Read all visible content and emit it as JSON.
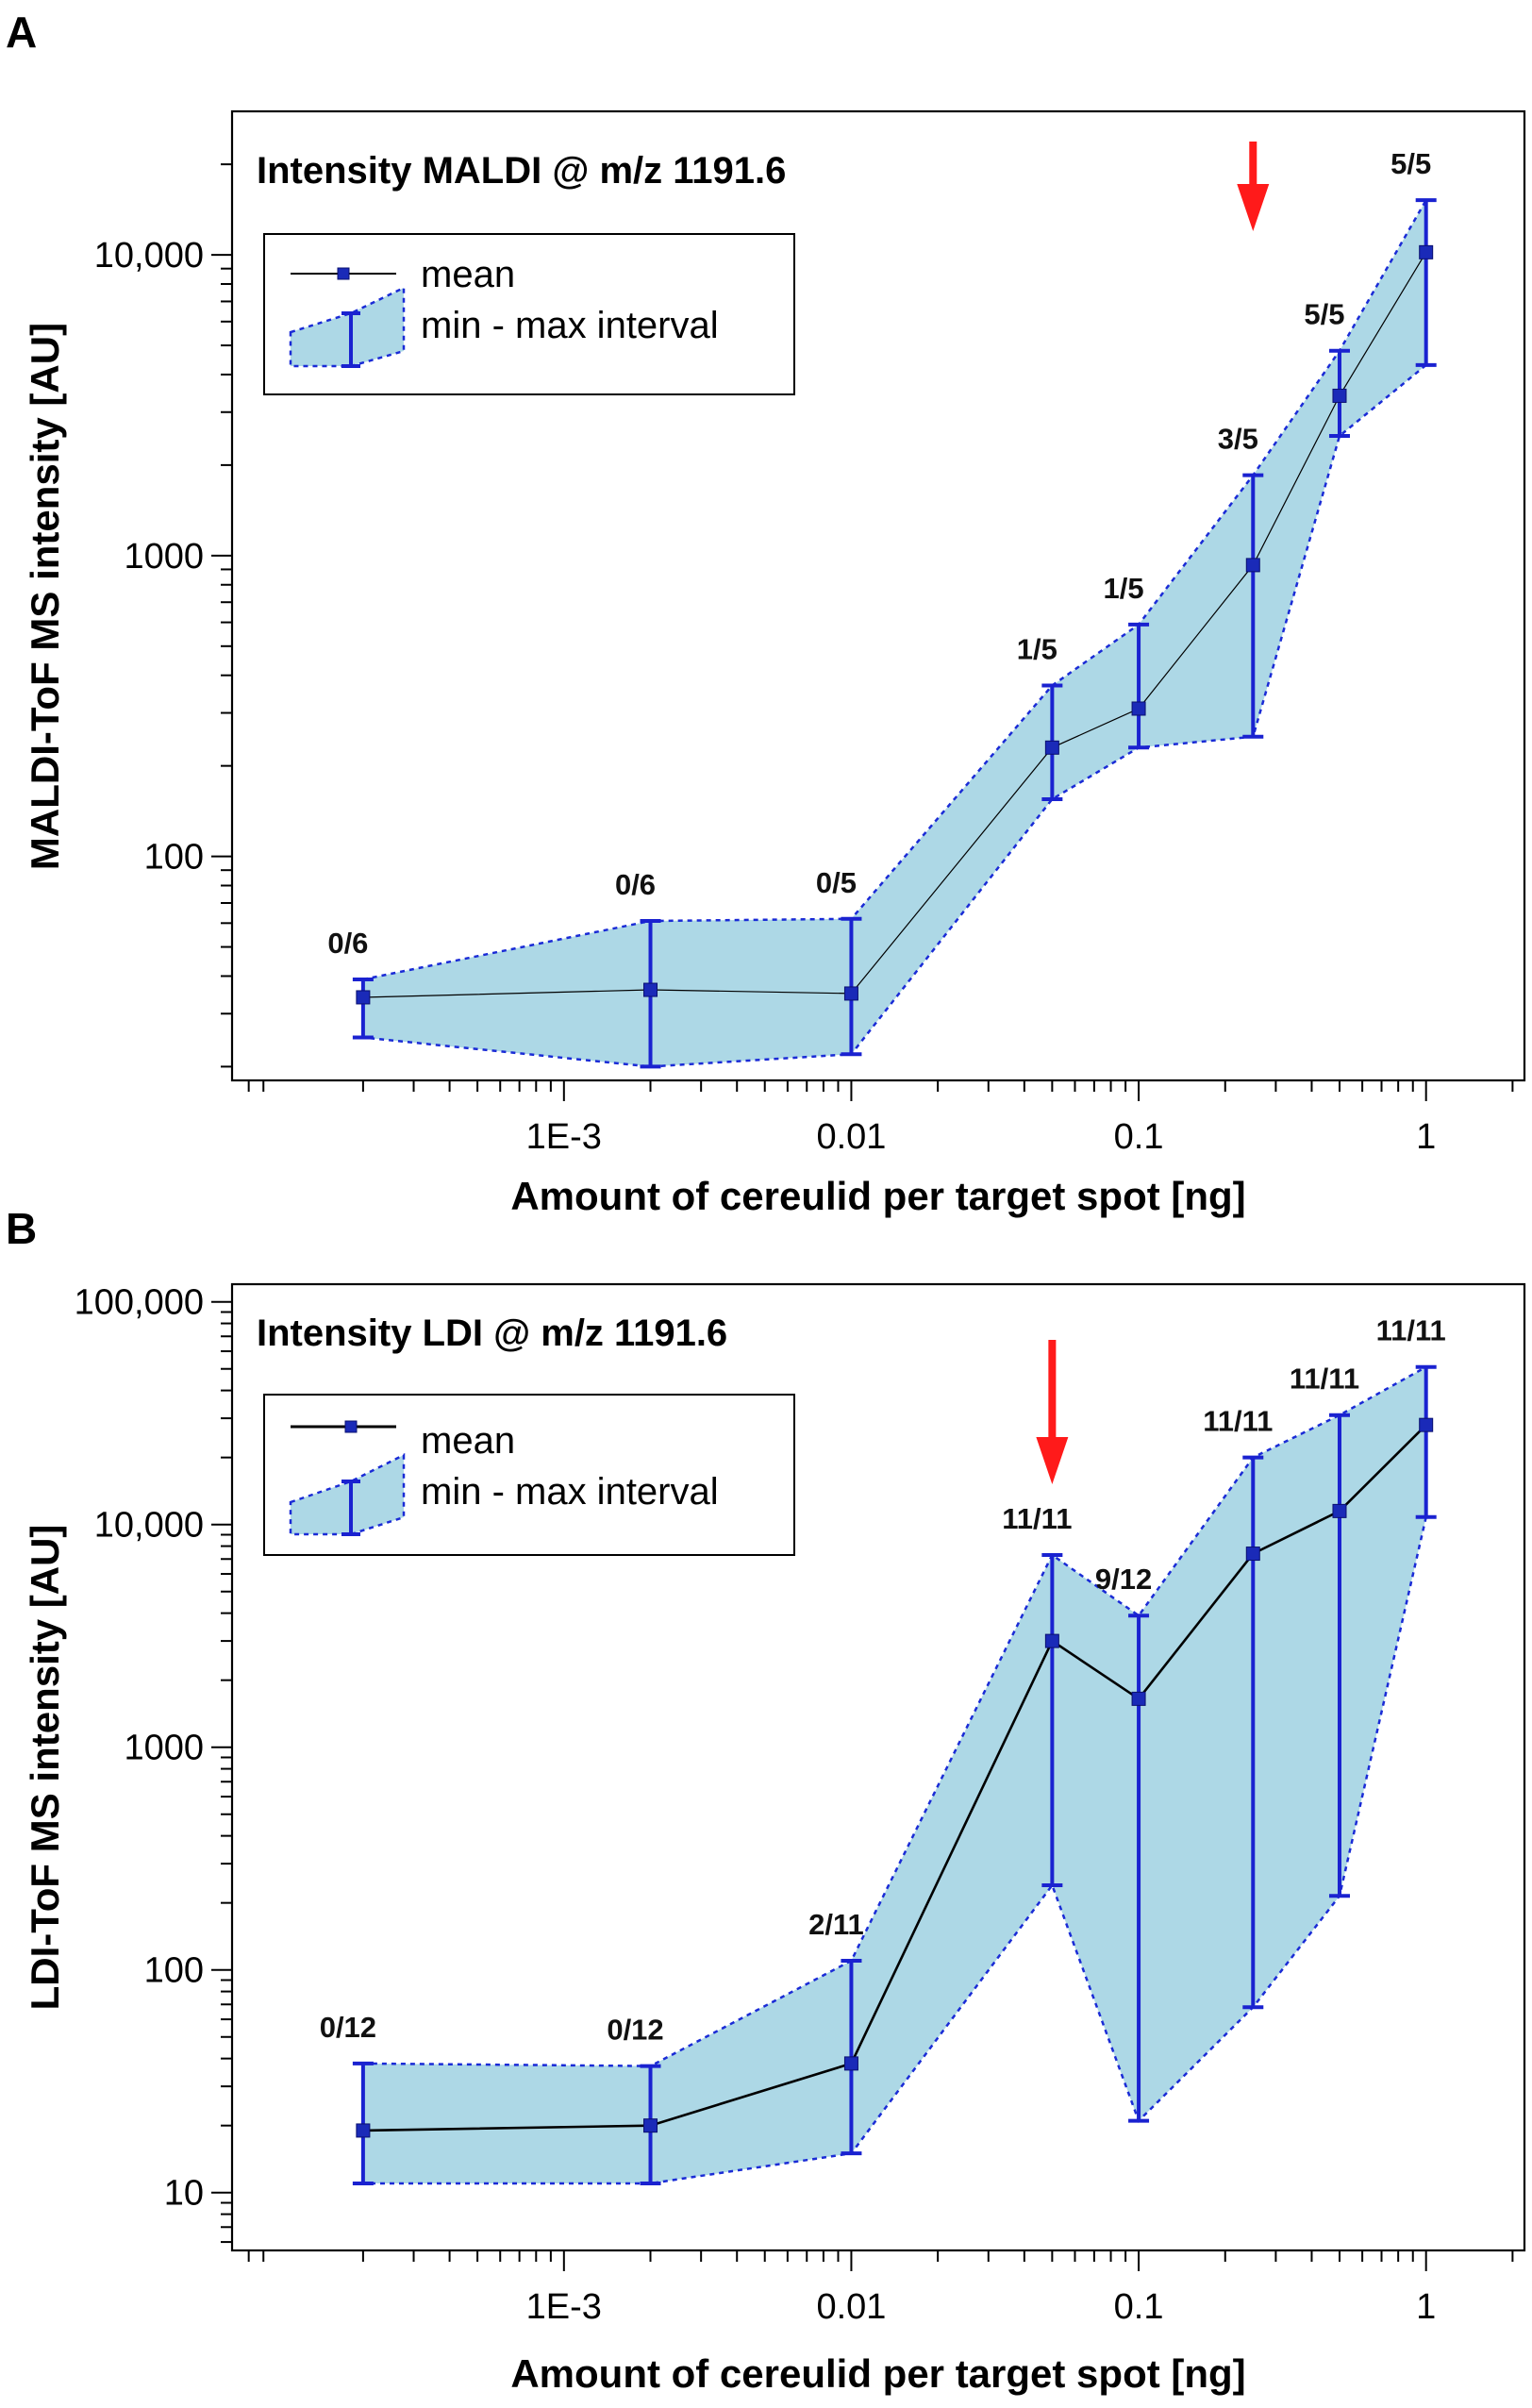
{
  "chart_data": [
    {
      "panel": "A",
      "type": "line",
      "title": "Intensity MALDI @ m/z 1191.6",
      "xlabel": "Amount of cereulid per target spot [ng]",
      "ylabel": "MALDI-ToF MS intensity [AU]",
      "xscale": "log",
      "yscale": "log",
      "xlim": [
        7e-05,
        2.2
      ],
      "ylim": [
        18,
        30000
      ],
      "xticks": [
        {
          "value": 0.001,
          "label": "1E-3"
        },
        {
          "value": 0.01,
          "label": "0.01"
        },
        {
          "value": 0.1,
          "label": "0.1"
        },
        {
          "value": 1,
          "label": "1"
        }
      ],
      "yticks": [
        {
          "value": 100,
          "label": "100"
        },
        {
          "value": 1000,
          "label": "1000"
        },
        {
          "value": 10000,
          "label": "10,000"
        }
      ],
      "legend": {
        "position": "top-left",
        "mean_label": "mean",
        "interval_label": "min - max interval"
      },
      "arrow_x": 0.25,
      "series": [
        {
          "name": "mean",
          "x": [
            0.0002,
            0.002,
            0.01,
            0.05,
            0.1,
            0.25,
            0.5,
            1
          ],
          "mean": [
            34,
            36,
            35,
            230,
            310,
            930,
            3400,
            10200
          ],
          "min": [
            25,
            20,
            22,
            155,
            230,
            250,
            2500,
            4300
          ],
          "max": [
            39,
            61,
            62,
            370,
            590,
            1850,
            4800,
            15200
          ],
          "labels": [
            "0/6",
            "0/6",
            "0/5",
            "1/5",
            "1/5",
            "3/5",
            "5/5",
            "5/5"
          ]
        }
      ]
    },
    {
      "panel": "B",
      "type": "line",
      "title": "Intensity LDI @ m/z 1191.6",
      "xlabel": "Amount of cereulid per target spot [ng]",
      "ylabel": "LDI-ToF MS intensity [AU]",
      "xscale": "log",
      "yscale": "log",
      "xlim": [
        7e-05,
        2.2
      ],
      "ylim": [
        5.5,
        120000
      ],
      "xticks": [
        {
          "value": 0.001,
          "label": "1E-3"
        },
        {
          "value": 0.01,
          "label": "0.01"
        },
        {
          "value": 0.1,
          "label": "0.1"
        },
        {
          "value": 1,
          "label": "1"
        }
      ],
      "yticks": [
        {
          "value": 10,
          "label": "10"
        },
        {
          "value": 100,
          "label": "100"
        },
        {
          "value": 1000,
          "label": "1000"
        },
        {
          "value": 10000,
          "label": "10,000"
        },
        {
          "value": 100000,
          "label": "100,000"
        }
      ],
      "legend": {
        "position": "top-left",
        "mean_label": "mean",
        "interval_label": "min - max interval"
      },
      "arrow_x": 0.05,
      "series": [
        {
          "name": "mean",
          "x": [
            0.0002,
            0.002,
            0.01,
            0.05,
            0.1,
            0.25,
            0.5,
            1
          ],
          "mean": [
            19,
            20,
            38,
            3000,
            1650,
            7400,
            11500,
            28000
          ],
          "min": [
            11,
            11,
            15,
            240,
            21,
            68,
            215,
            10800
          ],
          "max": [
            38,
            37,
            110,
            7300,
            3900,
            20000,
            31000,
            51000
          ],
          "labels": [
            "0/12",
            "0/12",
            "2/11",
            "11/11",
            "9/12",
            "11/11",
            "11/11",
            "11/11"
          ]
        }
      ]
    }
  ]
}
